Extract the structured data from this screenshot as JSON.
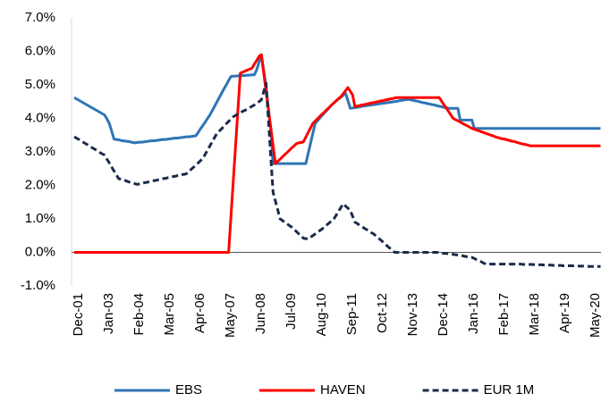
{
  "chart_data": {
    "type": "line",
    "categories": [
      "Dec-01",
      null,
      null,
      null,
      null,
      null,
      null,
      null,
      null,
      null,
      null,
      null,
      null,
      "Jan-03",
      null,
      null,
      null,
      null,
      null,
      null,
      null,
      null,
      null,
      null,
      null,
      null,
      "Feb-04",
      null,
      null,
      null,
      null,
      null,
      null,
      null,
      null,
      null,
      null,
      null,
      null,
      "Mar-05",
      null,
      null,
      null,
      null,
      null,
      null,
      null,
      null,
      null,
      null,
      null,
      null,
      "Apr-06",
      null,
      null,
      null,
      null,
      null,
      null,
      null,
      null,
      null,
      null,
      null,
      null,
      "May-07",
      null,
      null,
      null,
      null,
      null,
      null,
      null,
      null,
      null,
      null,
      null,
      null,
      "Jun-08",
      null,
      null,
      null,
      null,
      null,
      null,
      null,
      null,
      null,
      null,
      null,
      null,
      "Jul-09",
      null,
      null,
      null,
      null,
      null,
      null,
      null,
      null,
      null,
      null,
      null,
      null,
      "Aug-10",
      null,
      null,
      null,
      null,
      null,
      null,
      null,
      null,
      null,
      null,
      null,
      null,
      "Sep-11",
      null,
      null,
      null,
      null,
      null,
      null,
      null,
      null,
      null,
      null,
      null,
      null,
      "Oct-12",
      null,
      null,
      null,
      null,
      null,
      null,
      null,
      null,
      null,
      null,
      null,
      null,
      "Nov-13",
      null,
      null,
      null,
      null,
      null,
      null,
      null,
      null,
      null,
      null,
      null,
      null,
      "Dec-14",
      null,
      null,
      null,
      null,
      null,
      null,
      null,
      null,
      null,
      null,
      null,
      null,
      "Jan-16",
      null,
      null,
      null,
      null,
      null,
      null,
      null,
      null,
      null,
      null,
      null,
      null,
      "Feb-17",
      null,
      null,
      null,
      null,
      null,
      null,
      null,
      null,
      null,
      null,
      null,
      null,
      "Mar-18",
      null,
      null,
      null,
      null,
      null,
      null,
      null,
      null,
      null,
      null,
      null,
      null,
      "Apr-19",
      null,
      null,
      null,
      null,
      null,
      null,
      null,
      null,
      null,
      null,
      null,
      null,
      "May-20",
      null,
      null,
      null,
      null
    ],
    "series": [
      {
        "name": "EBS",
        "color": "#2e75b6",
        "style": "solid",
        "values": [
          4.62,
          4.58,
          4.54,
          4.5,
          4.46,
          4.42,
          4.38,
          4.34,
          4.3,
          4.26,
          4.22,
          4.18,
          4.14,
          4.1,
          3.98,
          3.85,
          3.62,
          3.38,
          3.37,
          3.36,
          3.34,
          3.33,
          3.32,
          3.31,
          3.3,
          3.28,
          3.27,
          3.28,
          3.29,
          3.29,
          3.3,
          3.31,
          3.32,
          3.33,
          3.33,
          3.34,
          3.35,
          3.36,
          3.37,
          3.37,
          3.38,
          3.39,
          3.4,
          3.41,
          3.41,
          3.42,
          3.43,
          3.44,
          3.45,
          3.45,
          3.46,
          3.47,
          3.48,
          3.58,
          3.69,
          3.79,
          3.89,
          4.0,
          4.1,
          4.23,
          4.36,
          4.49,
          4.62,
          4.75,
          4.88,
          5.0,
          5.13,
          5.25,
          5.26,
          5.26,
          5.27,
          5.27,
          5.28,
          5.28,
          5.29,
          5.29,
          5.3,
          5.3,
          5.45,
          5.68,
          5.9,
          5.43,
          4.95,
          4.3,
          3.65,
          2.65,
          2.65,
          2.65,
          2.65,
          2.65,
          2.65,
          2.65,
          2.65,
          2.65,
          2.65,
          2.65,
          2.65,
          2.65,
          2.65,
          2.65,
          2.95,
          3.25,
          3.55,
          3.85,
          3.93,
          4.01,
          4.09,
          4.17,
          4.24,
          4.32,
          4.4,
          4.46,
          4.52,
          4.58,
          4.63,
          4.69,
          4.75,
          4.53,
          4.3,
          4.31,
          4.32,
          4.33,
          4.34,
          4.36,
          4.37,
          4.38,
          4.39,
          4.4,
          4.41,
          4.42,
          4.43,
          4.44,
          4.45,
          4.46,
          4.47,
          4.48,
          4.49,
          4.5,
          4.51,
          4.53,
          4.54,
          4.55,
          4.56,
          4.57,
          4.55,
          4.54,
          4.52,
          4.51,
          4.49,
          4.47,
          4.46,
          4.44,
          4.43,
          4.41,
          4.4,
          4.38,
          4.36,
          4.35,
          4.33,
          4.32,
          4.3,
          4.3,
          4.3,
          4.3,
          4.3,
          3.95,
          3.95,
          3.95,
          3.95,
          3.95,
          3.95,
          3.7,
          3.7,
          3.7,
          3.7,
          3.7,
          3.7,
          3.7,
          3.7,
          3.7,
          3.7,
          3.7,
          3.7,
          3.7,
          3.7,
          3.7,
          3.7,
          3.7,
          3.7,
          3.7,
          3.7,
          3.7,
          3.7,
          3.7,
          3.7,
          3.7,
          3.7,
          3.7,
          3.7,
          3.7,
          3.7,
          3.7,
          3.7,
          3.7,
          3.7,
          3.7,
          3.7,
          3.7,
          3.7,
          3.7,
          3.7,
          3.7,
          3.7,
          3.7,
          3.7,
          3.7,
          3.7,
          3.7,
          3.7,
          3.7,
          3.7,
          3.7,
          3.7,
          3.7,
          3.7,
          3.7
        ]
      },
      {
        "name": "HAVEN",
        "color": "#ff0000",
        "style": "solid",
        "values": [
          0,
          0,
          0,
          0,
          0,
          0,
          0,
          0,
          0,
          0,
          0,
          0,
          0,
          0,
          0,
          0,
          0,
          0,
          0,
          0,
          0,
          0,
          0,
          0,
          0,
          0,
          0,
          0,
          0,
          0,
          0,
          0,
          0,
          0,
          0,
          0,
          0,
          0,
          0,
          0,
          0,
          0,
          0,
          0,
          0,
          0,
          0,
          0,
          0,
          0,
          0,
          0,
          0,
          0,
          0,
          0,
          0,
          0,
          0,
          0,
          0,
          0,
          0,
          0,
          0,
          0,
          0,
          1.07,
          2.14,
          3.21,
          4.28,
          5.35,
          5.38,
          5.41,
          5.44,
          5.47,
          5.5,
          5.62,
          5.73,
          5.85,
          5.9,
          5.36,
          4.82,
          4.28,
          3.73,
          3.19,
          2.65,
          2.72,
          2.78,
          2.85,
          2.92,
          2.98,
          3.05,
          3.12,
          3.18,
          3.25,
          3.27,
          3.28,
          3.3,
          3.44,
          3.58,
          3.71,
          3.85,
          3.92,
          3.99,
          4.06,
          4.13,
          4.19,
          4.26,
          4.33,
          4.4,
          4.46,
          4.53,
          4.59,
          4.65,
          4.74,
          4.83,
          4.92,
          4.81,
          4.7,
          4.35,
          4.37,
          4.38,
          4.4,
          4.41,
          4.43,
          4.44,
          4.46,
          4.47,
          4.49,
          4.5,
          4.52,
          4.53,
          4.55,
          4.56,
          4.58,
          4.59,
          4.61,
          4.62,
          4.62,
          4.62,
          4.62,
          4.62,
          4.62,
          4.62,
          4.62,
          4.62,
          4.62,
          4.62,
          4.62,
          4.62,
          4.62,
          4.62,
          4.62,
          4.62,
          4.62,
          4.62,
          4.52,
          4.41,
          4.31,
          4.21,
          4.1,
          4.0,
          3.96,
          3.93,
          3.89,
          3.85,
          3.81,
          3.78,
          3.74,
          3.7,
          3.68,
          3.65,
          3.63,
          3.6,
          3.58,
          3.55,
          3.53,
          3.5,
          3.48,
          3.45,
          3.43,
          3.41,
          3.39,
          3.38,
          3.36,
          3.34,
          3.32,
          3.31,
          3.29,
          3.27,
          3.25,
          3.23,
          3.22,
          3.2,
          3.18,
          3.18,
          3.18,
          3.18,
          3.18,
          3.18,
          3.18,
          3.18,
          3.18,
          3.18,
          3.18,
          3.18,
          3.18,
          3.18,
          3.18,
          3.18,
          3.18,
          3.18,
          3.18,
          3.18,
          3.18,
          3.18,
          3.18,
          3.18,
          3.18,
          3.18,
          3.18,
          3.18,
          3.18,
          3.18,
          3.18
        ]
      },
      {
        "name": "EUR 1M",
        "color": "#1b2a4a",
        "style": "dashed",
        "values": [
          3.45,
          3.41,
          3.37,
          3.32,
          3.28,
          3.24,
          3.2,
          3.15,
          3.11,
          3.07,
          3.03,
          2.98,
          2.94,
          2.9,
          2.78,
          2.67,
          2.55,
          2.43,
          2.32,
          2.2,
          2.18,
          2.16,
          2.14,
          2.11,
          2.09,
          2.07,
          2.05,
          2.03,
          2.05,
          2.06,
          2.08,
          2.09,
          2.11,
          2.12,
          2.14,
          2.15,
          2.17,
          2.18,
          2.2,
          2.21,
          2.23,
          2.24,
          2.26,
          2.27,
          2.29,
          2.3,
          2.32,
          2.33,
          2.35,
          2.41,
          2.48,
          2.54,
          2.61,
          2.67,
          2.74,
          2.8,
          2.93,
          3.05,
          3.18,
          3.3,
          3.43,
          3.55,
          3.62,
          3.69,
          3.76,
          3.84,
          3.91,
          3.98,
          4.05,
          4.09,
          4.13,
          4.17,
          4.21,
          4.24,
          4.28,
          4.32,
          4.36,
          4.4,
          4.45,
          4.5,
          4.55,
          4.8,
          5.05,
          3.97,
          2.88,
          1.8,
          1.53,
          1.27,
          1.0,
          0.95,
          0.9,
          0.85,
          0.8,
          0.75,
          0.68,
          0.62,
          0.55,
          0.49,
          0.42,
          0.41,
          0.4,
          0.45,
          0.5,
          0.55,
          0.6,
          0.65,
          0.7,
          0.76,
          0.82,
          0.88,
          0.94,
          1.0,
          1.11,
          1.23,
          1.34,
          1.45,
          1.38,
          1.32,
          1.25,
          1.08,
          0.9,
          0.86,
          0.81,
          0.77,
          0.72,
          0.68,
          0.64,
          0.59,
          0.55,
          0.49,
          0.43,
          0.37,
          0.31,
          0.24,
          0.18,
          0.12,
          0.06,
          0,
          0,
          0,
          0,
          0,
          0,
          0,
          0,
          0,
          0,
          0,
          0,
          0,
          0,
          0,
          0,
          0,
          0,
          0,
          -0.01,
          -0.02,
          -0.03,
          -0.03,
          -0.04,
          -0.05,
          -0.06,
          -0.07,
          -0.08,
          -0.09,
          -0.1,
          -0.12,
          -0.13,
          -0.14,
          -0.15,
          -0.18,
          -0.22,
          -0.25,
          -0.28,
          -0.32,
          -0.35,
          -0.35,
          -0.35,
          -0.35,
          -0.35,
          -0.35,
          -0.35,
          -0.35,
          -0.35,
          -0.35,
          -0.35,
          -0.35,
          -0.35,
          -0.35,
          -0.35,
          -0.35,
          -0.36,
          -0.36,
          -0.36,
          -0.36,
          -0.36,
          -0.37,
          -0.37,
          -0.37,
          -0.37,
          -0.38,
          -0.38,
          -0.38,
          -0.38,
          -0.39,
          -0.39,
          -0.39,
          -0.39,
          -0.4,
          -0.4,
          -0.4,
          -0.4,
          -0.4,
          -0.41,
          -0.41,
          -0.41,
          -0.41,
          -0.41,
          -0.41,
          -0.42,
          -0.42,
          -0.42,
          -0.42,
          -0.42,
          -0.42
        ]
      }
    ],
    "ylim": [
      -1,
      7
    ],
    "yticks": [
      {
        "value": -1,
        "label": "-1.0%"
      },
      {
        "value": 0,
        "label": "0.0%"
      },
      {
        "value": 1,
        "label": "1.0%"
      },
      {
        "value": 2,
        "label": "2.0%"
      },
      {
        "value": 3,
        "label": "3.0%"
      },
      {
        "value": 4,
        "label": "4.0%"
      },
      {
        "value": 5,
        "label": "5.0%"
      },
      {
        "value": 6,
        "label": "6.0%"
      },
      {
        "value": 7,
        "label": "7.0%"
      }
    ],
    "grid": false,
    "legend": "bottom"
  }
}
